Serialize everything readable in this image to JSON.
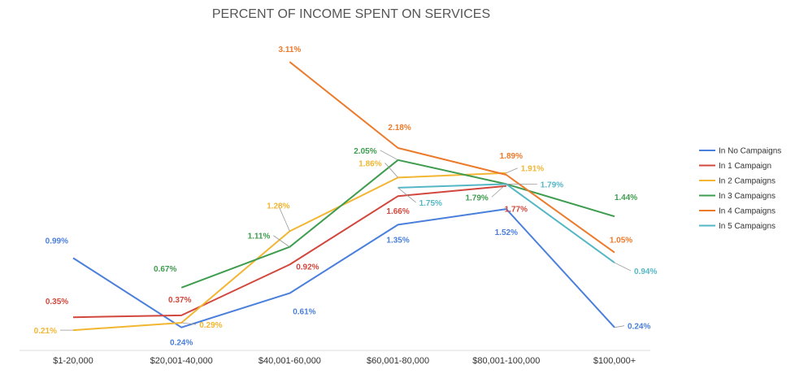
{
  "chart_data": {
    "type": "line",
    "title": "PERCENT OF INCOME SPENT ON SERVICES",
    "xlabel": "",
    "ylabel": "",
    "categories": [
      "$1-20,000",
      "$20,001-40,000",
      "$40,001-60,000",
      "$60,001-80,000",
      "$80,001-100,000",
      "$100,000+"
    ],
    "ylim": [
      0,
      3.2
    ],
    "grid": false,
    "legend_position": "right",
    "series": [
      {
        "name": "In No Campaigns",
        "color": "#4a7fdc",
        "values": [
          0.99,
          0.24,
          0.61,
          1.35,
          1.52,
          0.24
        ],
        "labels": [
          "0.99%",
          "0.24%",
          "0.61%",
          "1.35%",
          "1.52%",
          "0.24%"
        ]
      },
      {
        "name": "In 1 Campaign",
        "color": "#d2473d",
        "values": [
          0.35,
          0.37,
          0.92,
          1.66,
          1.77,
          null
        ],
        "labels": [
          "0.35%",
          "0.37%",
          "0.92%",
          "1.66%",
          "1.77%",
          ""
        ]
      },
      {
        "name": "In 2 Campaigns",
        "color": "#f2b632",
        "values": [
          0.21,
          0.29,
          1.28,
          1.86,
          1.91,
          null
        ],
        "labels": [
          "0.21%",
          "0.29%",
          "1.28%",
          "1.86%",
          "1.91%",
          ""
        ]
      },
      {
        "name": "In 3 Campaigns",
        "color": "#3f9c4f",
        "values": [
          null,
          0.67,
          1.11,
          2.05,
          1.79,
          1.44
        ],
        "labels": [
          "",
          "0.67%",
          "1.11%",
          "2.05%",
          "1.79%",
          "1.44%"
        ]
      },
      {
        "name": "In 4 Campaigns",
        "color": "#ec7a2b",
        "values": [
          null,
          null,
          3.11,
          2.18,
          1.89,
          1.05
        ],
        "labels": [
          "",
          "",
          "3.11%",
          "2.18%",
          "1.89%",
          "1.05%"
        ]
      },
      {
        "name": "In 5 Campaigns",
        "color": "#55b7c5",
        "values": [
          null,
          null,
          null,
          1.75,
          1.79,
          0.94
        ],
        "labels": [
          "",
          "",
          "",
          "1.75%",
          "1.79%",
          "0.94%"
        ]
      }
    ]
  }
}
